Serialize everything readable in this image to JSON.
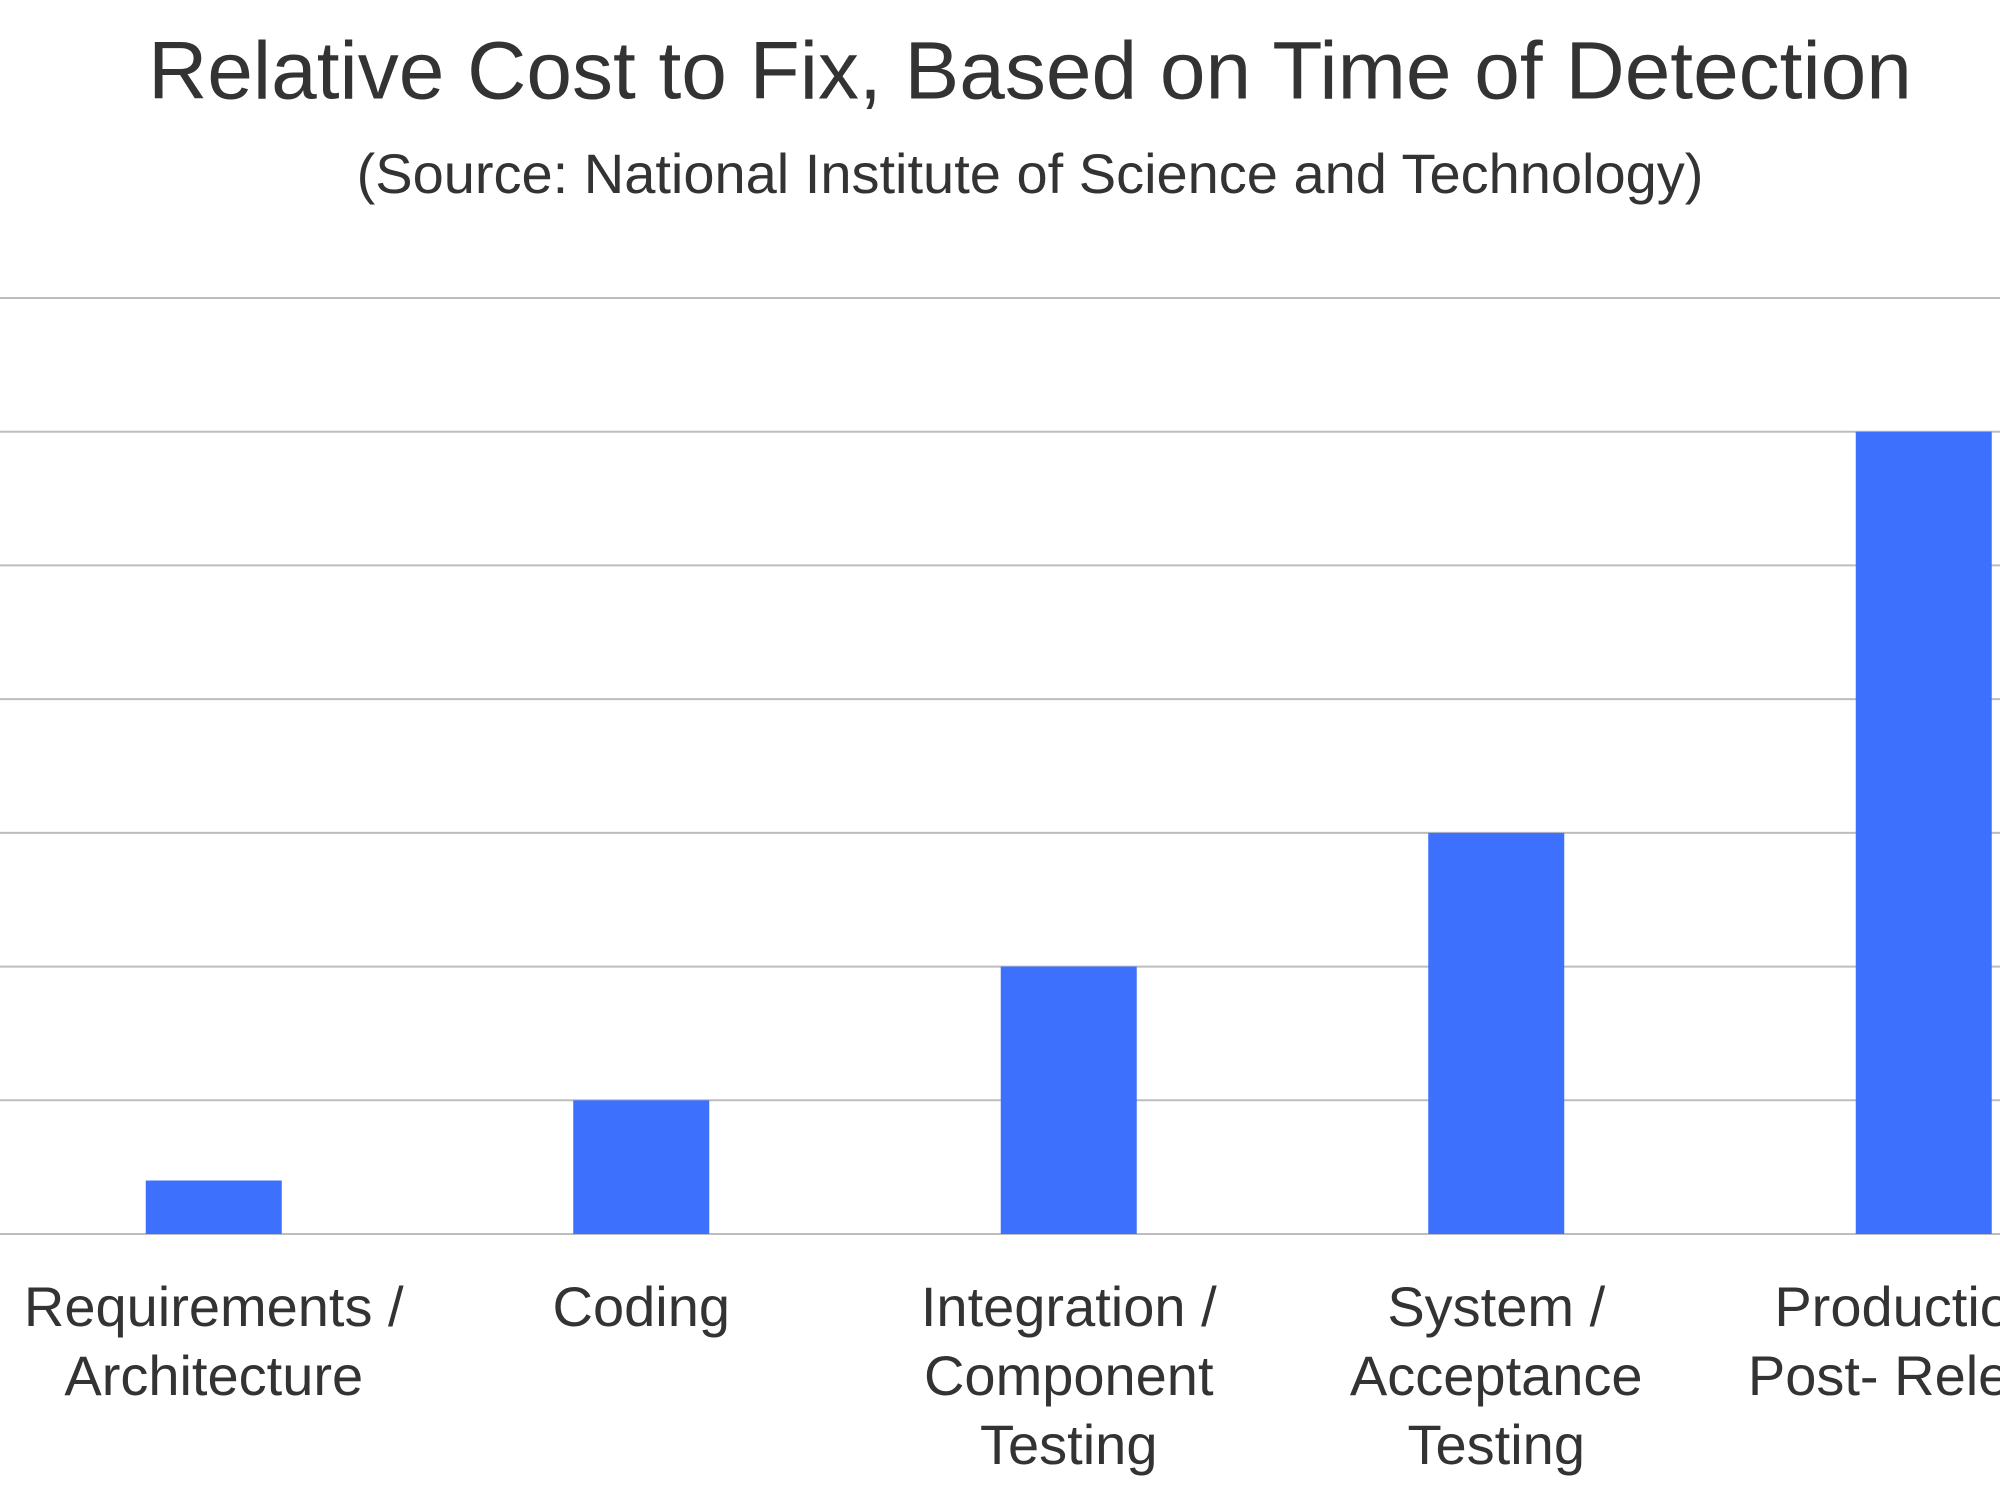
{
  "chart_data": {
    "type": "bar",
    "title": "Relative Cost to Fix, Based on Time of Detection",
    "subtitle": "(Source: National Institute of Science and Technology)",
    "categories": [
      [
        "Requirements /",
        "Architecture"
      ],
      [
        "Coding"
      ],
      [
        "Integration /",
        "Component",
        "Testing"
      ],
      [
        "System /",
        "Acceptance",
        "Testing"
      ],
      [
        "Production /",
        "Post- Release"
      ]
    ],
    "values": [
      2,
      5,
      10,
      15,
      30
    ],
    "color": "#3d70fd",
    "ylim": [
      0,
      35
    ],
    "yticks": [
      0,
      5,
      10,
      15,
      20,
      25,
      30,
      35
    ],
    "grid": true
  }
}
